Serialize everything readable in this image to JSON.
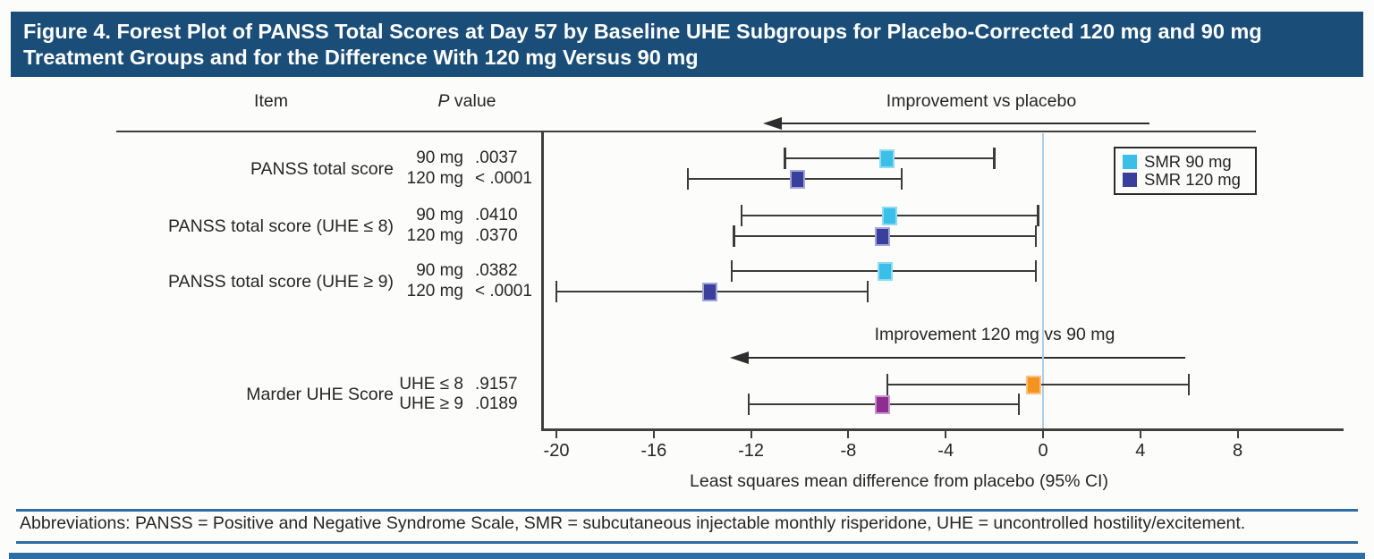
{
  "title_bar": {
    "text": "Figure 4. Forest Plot of PANSS Total Scores at Day 57 by Baseline UHE Subgroups for Placebo-Corrected 120 mg and 90 mg Treatment Groups and for the Difference With 120 mg Versus 90 mg",
    "bg_color": "#1A4E78"
  },
  "header": {
    "item_label": "Item",
    "p_italic": "P",
    "p_rest": "value"
  },
  "legend": {
    "entries": [
      {
        "label": "SMR 90 mg",
        "color": "#3ABFE8"
      },
      {
        "label": "SMR 120 mg",
        "color": "#3A3F9C"
      }
    ]
  },
  "footer": {
    "text": "Abbreviations: PANSS = Positive and Negative Syndrome Scale, SMR = subcutaneous injectable monthly risperidone, UHE = uncontrolled hostility/excitement."
  },
  "chart_data": {
    "type": "forest",
    "xlabel": "Least squares mean difference from placebo (95% CI)",
    "x_domain": [
      -20.8,
      9.0
    ],
    "x_ticks": [
      -20,
      -16,
      -12,
      -8,
      -4,
      0,
      4,
      8
    ],
    "reference_line": 0,
    "annotations": {
      "vs_placebo": "Improvement vs placebo",
      "vs_90": "Improvement 120 mg vs 90 mg"
    },
    "colors": {
      "smr90": {
        "fill": "#3ABFE8",
        "edge": "#90DBF2"
      },
      "smr120": {
        "fill": "#3A3F9C",
        "edge": "#A2A6DA"
      },
      "orange": {
        "fill": "#F6921E",
        "edge": "#FBC183"
      },
      "purple": {
        "fill": "#8D2E90",
        "edge": "#C993CB"
      }
    },
    "rows": [
      {
        "item": "PANSS total score",
        "points": [
          {
            "dose": "90 mg",
            "p_value": ".0037",
            "series": "SMR 90 mg",
            "color_key": "smr90",
            "value": -6.4,
            "ci_low": -10.6,
            "ci_high": -2.0
          },
          {
            "dose": "120 mg",
            "p_value": "< .0001",
            "series": "SMR 120 mg",
            "color_key": "smr120",
            "value": -10.1,
            "ci_low": -14.6,
            "ci_high": -5.8
          }
        ]
      },
      {
        "item": "PANSS total score (UHE ≤ 8)",
        "points": [
          {
            "dose": "90 mg",
            "p_value": ".0410",
            "series": "SMR 90 mg",
            "color_key": "smr90",
            "value": -6.3,
            "ci_low": -12.4,
            "ci_high": -0.2
          },
          {
            "dose": "120 mg",
            "p_value": ".0370",
            "series": "SMR 120 mg",
            "color_key": "smr120",
            "value": -6.6,
            "ci_low": -12.7,
            "ci_high": -0.3
          }
        ]
      },
      {
        "item": "PANSS total score (UHE ≥ 9)",
        "points": [
          {
            "dose": "90 mg",
            "p_value": ".0382",
            "series": "SMR 90 mg",
            "color_key": "smr90",
            "value": -6.5,
            "ci_low": -12.8,
            "ci_high": -0.3
          },
          {
            "dose": "120 mg",
            "p_value": "< .0001",
            "series": "SMR 120 mg",
            "color_key": "smr120",
            "value": -13.7,
            "ci_low": -20.0,
            "ci_high": -7.2
          }
        ]
      },
      {
        "item": "Marder UHE Score",
        "points": [
          {
            "dose": "UHE ≤ 8",
            "p_value": ".9157",
            "series": "120 mg vs 90 mg (UHE ≤ 8)",
            "color_key": "orange",
            "value": -0.4,
            "ci_low": -6.4,
            "ci_high": 6.0
          },
          {
            "dose": "UHE ≥ 9",
            "p_value": ".0189",
            "series": "120 mg vs 90 mg (UHE ≥ 9)",
            "color_key": "purple",
            "value": -6.6,
            "ci_low": -12.1,
            "ci_high": -1.0
          }
        ]
      }
    ]
  }
}
